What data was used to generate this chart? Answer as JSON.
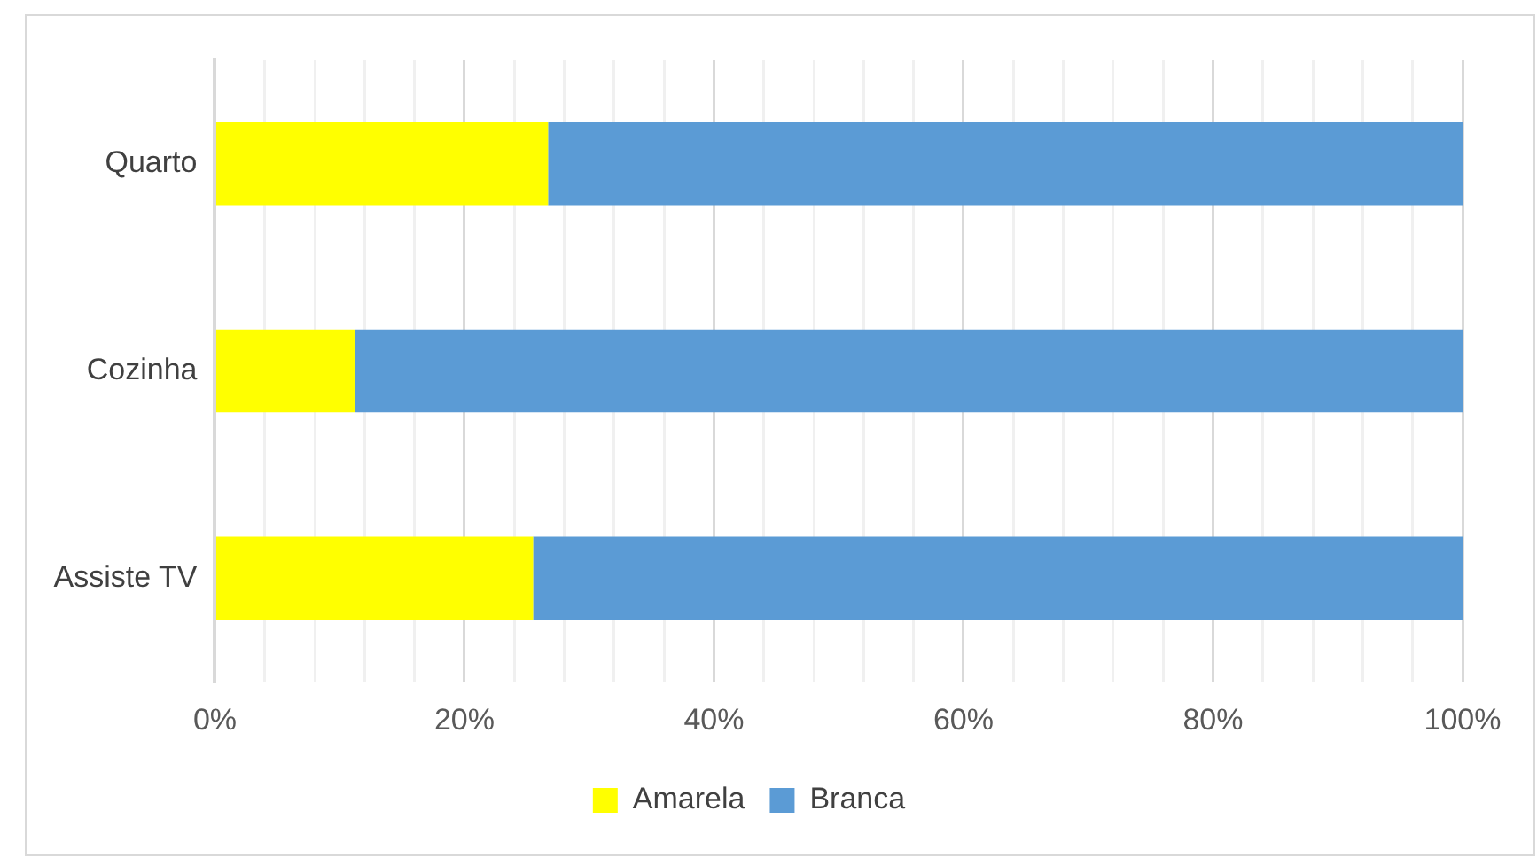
{
  "chart_data": {
    "type": "bar",
    "orientation": "horizontal",
    "stacked": true,
    "categories": [
      "Quarto",
      "Cozinha",
      "Assiste TV"
    ],
    "series": [
      {
        "name": "Amarela",
        "color": "#ffff00",
        "values": [
          26.7,
          11.2,
          25.5
        ]
      },
      {
        "name": "Branca",
        "color": "#5b9bd5",
        "values": [
          73.3,
          88.8,
          74.5
        ]
      }
    ],
    "xlim": [
      0,
      100
    ],
    "xticks": [
      {
        "value": 0,
        "label": "0%"
      },
      {
        "value": 4,
        "label": null
      },
      {
        "value": 8,
        "label": null
      },
      {
        "value": 12,
        "label": null
      },
      {
        "value": 16,
        "label": null
      },
      {
        "value": 20,
        "label": "20%"
      },
      {
        "value": 24,
        "label": null
      },
      {
        "value": 28,
        "label": null
      },
      {
        "value": 32,
        "label": null
      },
      {
        "value": 36,
        "label": null
      },
      {
        "value": 40,
        "label": "40%"
      },
      {
        "value": 44,
        "label": null
      },
      {
        "value": 48,
        "label": null
      },
      {
        "value": 52,
        "label": null
      },
      {
        "value": 56,
        "label": null
      },
      {
        "value": 60,
        "label": "60%"
      },
      {
        "value": 64,
        "label": null
      },
      {
        "value": 68,
        "label": null
      },
      {
        "value": 72,
        "label": null
      },
      {
        "value": 76,
        "label": null
      },
      {
        "value": 80,
        "label": "80%"
      },
      {
        "value": 84,
        "label": null
      },
      {
        "value": 88,
        "label": null
      },
      {
        "value": 92,
        "label": null
      },
      {
        "value": 96,
        "label": null
      },
      {
        "value": 100,
        "label": "100%"
      }
    ],
    "grid": "x",
    "legend": "bottom"
  }
}
